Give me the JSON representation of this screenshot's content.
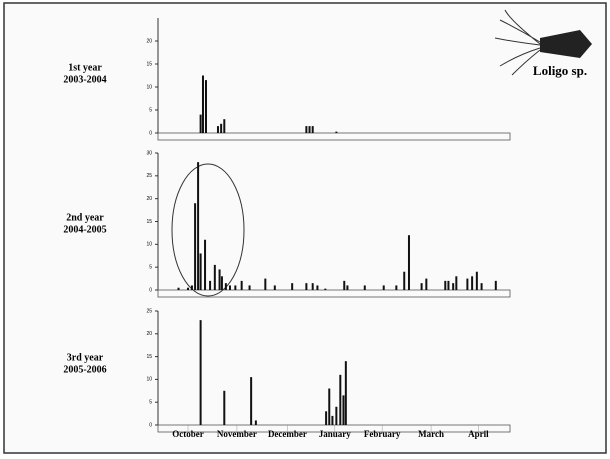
{
  "chart_data": [
    {
      "type": "bar",
      "title": "1st year",
      "subtitle": "2003-2004",
      "annotation": "Loligo sp.",
      "color": "#111111",
      "x": [
        19,
        20.5,
        22.4,
        30,
        32,
        34,
        86,
        88,
        90,
        105
      ],
      "values": [
        4,
        12.5,
        11.5,
        1.5,
        2,
        3,
        1.5,
        1.5,
        1.5,
        0.3
      ],
      "xlim": [
        -8,
        215
      ],
      "ylim": [
        0,
        25
      ],
      "yticks": [
        0,
        5,
        10,
        15,
        20
      ]
    },
    {
      "type": "bar",
      "title": "2nd year",
      "subtitle": "2004-2005",
      "color": "#111111",
      "x": [
        5,
        11,
        13.5,
        15.5,
        17.4,
        19,
        21.8,
        25,
        28,
        31,
        32.5,
        35,
        37.6,
        41,
        45,
        50,
        60,
        66,
        77,
        86,
        90,
        93,
        98,
        110,
        112,
        123,
        135,
        143,
        148,
        151,
        159,
        162,
        174,
        176,
        179,
        181,
        188,
        191,
        194,
        197,
        206
      ],
      "values": [
        0.5,
        0.5,
        1,
        19,
        28,
        8,
        11,
        2,
        5.5,
        4.5,
        3,
        1.5,
        1,
        1,
        2,
        1,
        2.5,
        1,
        1.5,
        1.5,
        1.5,
        1,
        0.3,
        2,
        1,
        1,
        1,
        1,
        4,
        12,
        1.5,
        2.5,
        2,
        2,
        1.5,
        3,
        2.5,
        3,
        4,
        1.5,
        2
      ],
      "xlim": [
        -8,
        215
      ],
      "ylim": [
        0,
        30
      ],
      "yticks": [
        0,
        5,
        10,
        15,
        20,
        25,
        30
      ]
    },
    {
      "type": "bar",
      "title": "3rd year",
      "subtitle": "2005-2006",
      "color": "#111111",
      "x": [
        19,
        34,
        51,
        54,
        98.5,
        100.5,
        102.5,
        105,
        107.5,
        109.5,
        111
      ],
      "values": [
        23,
        7.5,
        10.5,
        1,
        3,
        8,
        2,
        4,
        11,
        6.5,
        14
      ],
      "xlim": [
        -8,
        215
      ],
      "ylim": [
        0,
        25
      ],
      "yticks": [
        0,
        5,
        10,
        15,
        20,
        25
      ],
      "xticks": [
        {
          "value": 11,
          "label": "October"
        },
        {
          "value": 42,
          "label": "November"
        },
        {
          "value": 74,
          "label": "December"
        },
        {
          "value": 104,
          "label": "January"
        },
        {
          "value": 134,
          "label": "February"
        },
        {
          "value": 165,
          "label": "March"
        },
        {
          "value": 195,
          "label": "April"
        }
      ]
    }
  ]
}
